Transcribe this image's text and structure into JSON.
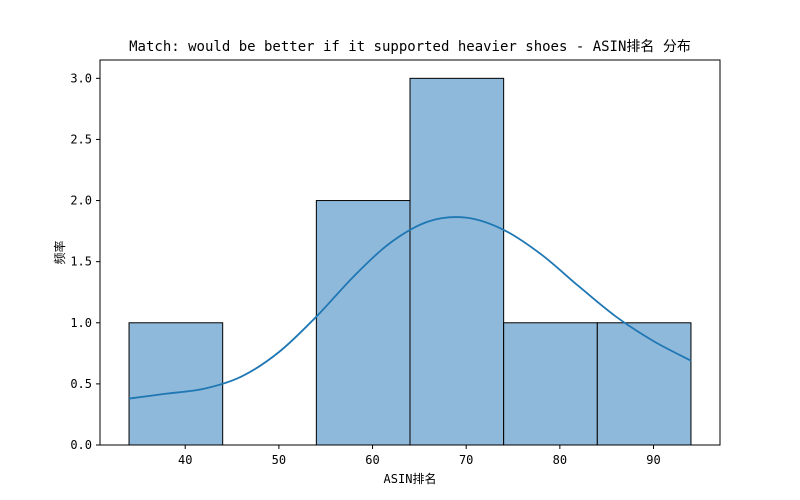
{
  "chart_data": {
    "type": "bar",
    "subtype": "histogram-with-kde",
    "title": "Match: would be better if it supported heavier shoes - ASIN排名 分布",
    "xlabel": "ASIN排名",
    "ylabel": "频率",
    "xlim": [
      30.9,
      97.1
    ],
    "ylim": [
      0,
      3.15
    ],
    "xticks": [
      40,
      50,
      60,
      70,
      80,
      90
    ],
    "yticks": [
      0.0,
      0.5,
      1.0,
      1.5,
      2.0,
      2.5,
      3.0
    ],
    "ytick_labels": [
      "0.0",
      "0.5",
      "1.0",
      "1.5",
      "2.0",
      "2.5",
      "3.0"
    ],
    "bins": [
      {
        "x0": 34,
        "x1": 44,
        "count": 1
      },
      {
        "x0": 44,
        "x1": 54,
        "count": 0
      },
      {
        "x0": 54,
        "x1": 64,
        "count": 2
      },
      {
        "x0": 64,
        "x1": 74,
        "count": 3
      },
      {
        "x0": 74,
        "x1": 84,
        "count": 1
      },
      {
        "x0": 84,
        "x1": 94,
        "count": 1
      }
    ],
    "kde": {
      "x": [
        34,
        38,
        42,
        46,
        50,
        54,
        58,
        62,
        66,
        70,
        74,
        78,
        82,
        86,
        90,
        94
      ],
      "y": [
        0.38,
        0.42,
        0.46,
        0.56,
        0.76,
        1.05,
        1.38,
        1.66,
        1.83,
        1.86,
        1.76,
        1.56,
        1.3,
        1.05,
        0.85,
        0.69
      ]
    },
    "grid": false,
    "colors": {
      "bar_fill": "#8fb9da",
      "bar_edge": "#000000",
      "kde_line": "#1f77b4"
    }
  }
}
